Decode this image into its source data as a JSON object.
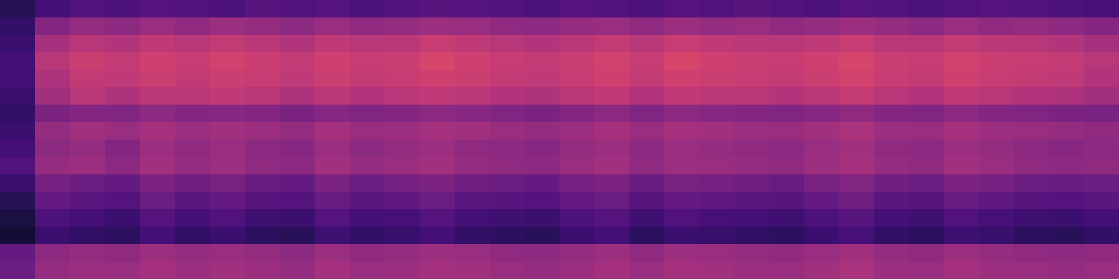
{
  "chart_data": {
    "type": "heatmap",
    "color": "magma",
    "zlim": [
      0,
      1
    ],
    "grid": false,
    "tick_labels": false,
    "cells": [
      [
        0.15,
        0.22,
        0.25,
        0.24,
        0.26,
        0.25,
        0.24,
        0.27,
        0.25,
        0.26,
        0.24,
        0.25,
        0.27,
        0.26,
        0.25,
        0.24,
        0.26,
        0.25,
        0.24,
        0.26,
        0.25,
        0.27,
        0.25,
        0.24,
        0.26,
        0.25,
        0.24,
        0.25,
        0.26,
        0.25,
        0.24,
        0.23
      ],
      [
        0.18,
        0.38,
        0.42,
        0.4,
        0.43,
        0.41,
        0.44,
        0.42,
        0.4,
        0.43,
        0.41,
        0.42,
        0.44,
        0.43,
        0.41,
        0.4,
        0.42,
        0.43,
        0.41,
        0.44,
        0.42,
        0.43,
        0.41,
        0.42,
        0.44,
        0.42,
        0.4,
        0.43,
        0.41,
        0.42,
        0.4,
        0.38
      ],
      [
        0.2,
        0.46,
        0.5,
        0.49,
        0.52,
        0.5,
        0.53,
        0.51,
        0.49,
        0.52,
        0.5,
        0.51,
        0.54,
        0.52,
        0.5,
        0.49,
        0.51,
        0.53,
        0.5,
        0.54,
        0.52,
        0.51,
        0.5,
        0.52,
        0.54,
        0.51,
        0.5,
        0.53,
        0.51,
        0.5,
        0.49,
        0.46
      ],
      [
        0.22,
        0.5,
        0.55,
        0.53,
        0.56,
        0.54,
        0.57,
        0.55,
        0.53,
        0.56,
        0.54,
        0.55,
        0.58,
        0.56,
        0.54,
        0.53,
        0.55,
        0.57,
        0.54,
        0.58,
        0.56,
        0.55,
        0.54,
        0.56,
        0.58,
        0.55,
        0.54,
        0.57,
        0.55,
        0.54,
        0.53,
        0.5
      ],
      [
        0.22,
        0.48,
        0.53,
        0.52,
        0.55,
        0.53,
        0.55,
        0.54,
        0.52,
        0.55,
        0.53,
        0.54,
        0.56,
        0.55,
        0.53,
        0.52,
        0.54,
        0.56,
        0.53,
        0.56,
        0.55,
        0.54,
        0.53,
        0.55,
        0.57,
        0.54,
        0.53,
        0.56,
        0.54,
        0.53,
        0.52,
        0.49
      ],
      [
        0.2,
        0.45,
        0.5,
        0.48,
        0.51,
        0.5,
        0.52,
        0.5,
        0.48,
        0.51,
        0.49,
        0.5,
        0.52,
        0.51,
        0.49,
        0.48,
        0.5,
        0.52,
        0.49,
        0.52,
        0.51,
        0.5,
        0.49,
        0.51,
        0.53,
        0.5,
        0.49,
        0.52,
        0.5,
        0.49,
        0.48,
        0.45
      ],
      [
        0.18,
        0.36,
        0.38,
        0.37,
        0.4,
        0.38,
        0.39,
        0.38,
        0.36,
        0.39,
        0.37,
        0.38,
        0.4,
        0.39,
        0.37,
        0.36,
        0.38,
        0.4,
        0.37,
        0.4,
        0.39,
        0.38,
        0.37,
        0.39,
        0.41,
        0.38,
        0.37,
        0.4,
        0.38,
        0.37,
        0.36,
        0.35
      ],
      [
        0.2,
        0.42,
        0.45,
        0.43,
        0.46,
        0.44,
        0.45,
        0.44,
        0.42,
        0.46,
        0.43,
        0.44,
        0.46,
        0.45,
        0.43,
        0.42,
        0.44,
        0.46,
        0.43,
        0.46,
        0.45,
        0.44,
        0.43,
        0.45,
        0.47,
        0.44,
        0.43,
        0.46,
        0.44,
        0.43,
        0.42,
        0.41
      ],
      [
        0.22,
        0.4,
        0.42,
        0.38,
        0.44,
        0.41,
        0.43,
        0.4,
        0.39,
        0.44,
        0.4,
        0.42,
        0.44,
        0.41,
        0.4,
        0.39,
        0.42,
        0.44,
        0.4,
        0.43,
        0.42,
        0.41,
        0.4,
        0.43,
        0.45,
        0.41,
        0.4,
        0.44,
        0.42,
        0.4,
        0.39,
        0.4
      ],
      [
        0.25,
        0.42,
        0.44,
        0.4,
        0.45,
        0.42,
        0.44,
        0.41,
        0.4,
        0.45,
        0.42,
        0.43,
        0.45,
        0.42,
        0.41,
        0.4,
        0.43,
        0.45,
        0.41,
        0.44,
        0.43,
        0.42,
        0.41,
        0.44,
        0.46,
        0.42,
        0.41,
        0.45,
        0.43,
        0.41,
        0.4,
        0.41
      ],
      [
        0.2,
        0.34,
        0.32,
        0.3,
        0.36,
        0.33,
        0.35,
        0.31,
        0.3,
        0.36,
        0.32,
        0.34,
        0.36,
        0.33,
        0.32,
        0.3,
        0.34,
        0.36,
        0.31,
        0.35,
        0.34,
        0.33,
        0.31,
        0.35,
        0.37,
        0.33,
        0.32,
        0.36,
        0.34,
        0.32,
        0.31,
        0.32
      ],
      [
        0.15,
        0.3,
        0.28,
        0.26,
        0.32,
        0.28,
        0.3,
        0.27,
        0.26,
        0.31,
        0.28,
        0.29,
        0.32,
        0.28,
        0.27,
        0.26,
        0.3,
        0.32,
        0.27,
        0.3,
        0.29,
        0.28,
        0.27,
        0.3,
        0.33,
        0.28,
        0.27,
        0.31,
        0.29,
        0.27,
        0.26,
        0.28
      ],
      [
        0.12,
        0.24,
        0.22,
        0.2,
        0.26,
        0.22,
        0.25,
        0.21,
        0.2,
        0.26,
        0.22,
        0.23,
        0.26,
        0.22,
        0.21,
        0.2,
        0.24,
        0.26,
        0.21,
        0.25,
        0.23,
        0.22,
        0.21,
        0.24,
        0.27,
        0.22,
        0.21,
        0.25,
        0.23,
        0.21,
        0.2,
        0.22
      ],
      [
        0.1,
        0.2,
        0.18,
        0.17,
        0.22,
        0.18,
        0.2,
        0.17,
        0.16,
        0.21,
        0.18,
        0.19,
        0.22,
        0.18,
        0.17,
        0.16,
        0.2,
        0.22,
        0.17,
        0.2,
        0.19,
        0.18,
        0.17,
        0.2,
        0.23,
        0.18,
        0.17,
        0.21,
        0.19,
        0.17,
        0.16,
        0.18
      ],
      [
        0.3,
        0.4,
        0.42,
        0.41,
        0.44,
        0.42,
        0.43,
        0.42,
        0.4,
        0.44,
        0.41,
        0.42,
        0.44,
        0.43,
        0.41,
        0.4,
        0.42,
        0.44,
        0.41,
        0.44,
        0.43,
        0.42,
        0.41,
        0.43,
        0.45,
        0.42,
        0.41,
        0.44,
        0.42,
        0.41,
        0.4,
        0.41
      ],
      [
        0.32,
        0.42,
        0.44,
        0.43,
        0.46,
        0.44,
        0.45,
        0.44,
        0.42,
        0.46,
        0.43,
        0.44,
        0.46,
        0.45,
        0.43,
        0.42,
        0.44,
        0.46,
        0.43,
        0.46,
        0.45,
        0.44,
        0.43,
        0.45,
        0.47,
        0.44,
        0.43,
        0.46,
        0.44,
        0.43,
        0.42,
        0.43
      ]
    ]
  }
}
